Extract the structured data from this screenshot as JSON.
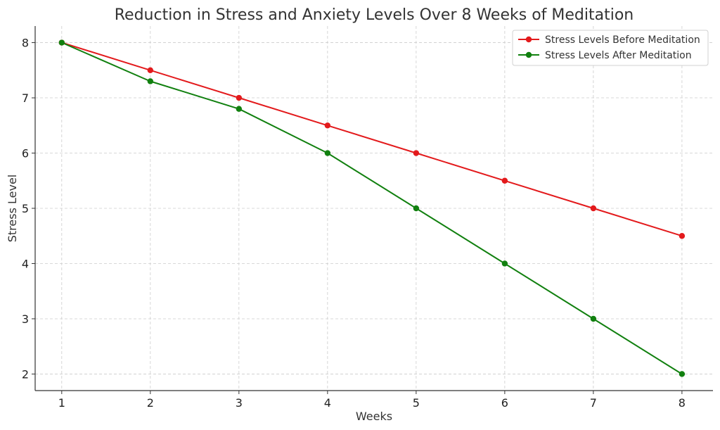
{
  "chart_data": {
    "type": "line",
    "title": "Reduction in Stress and Anxiety Levels Over 8 Weeks of Meditation",
    "xlabel": "Weeks",
    "ylabel": "Stress Level",
    "x": [
      1,
      2,
      3,
      4,
      5,
      6,
      7,
      8
    ],
    "x_ticks": [
      1,
      2,
      3,
      4,
      5,
      6,
      7,
      8
    ],
    "y_ticks": [
      2,
      3,
      4,
      5,
      6,
      7,
      8
    ],
    "xlim": [
      0.7,
      8.35
    ],
    "ylim": [
      1.7,
      8.3
    ],
    "grid": true,
    "legend_position": "top-right",
    "series": [
      {
        "name": "Stress Levels Before Meditation",
        "color": "#e31a1c",
        "values": [
          8,
          7.5,
          7,
          6.5,
          6,
          5.5,
          5,
          4.5
        ]
      },
      {
        "name": "Stress Levels After Meditation",
        "color": "#11800f",
        "values": [
          8,
          7.3,
          6.8,
          6,
          5,
          4,
          3,
          2
        ]
      }
    ]
  }
}
